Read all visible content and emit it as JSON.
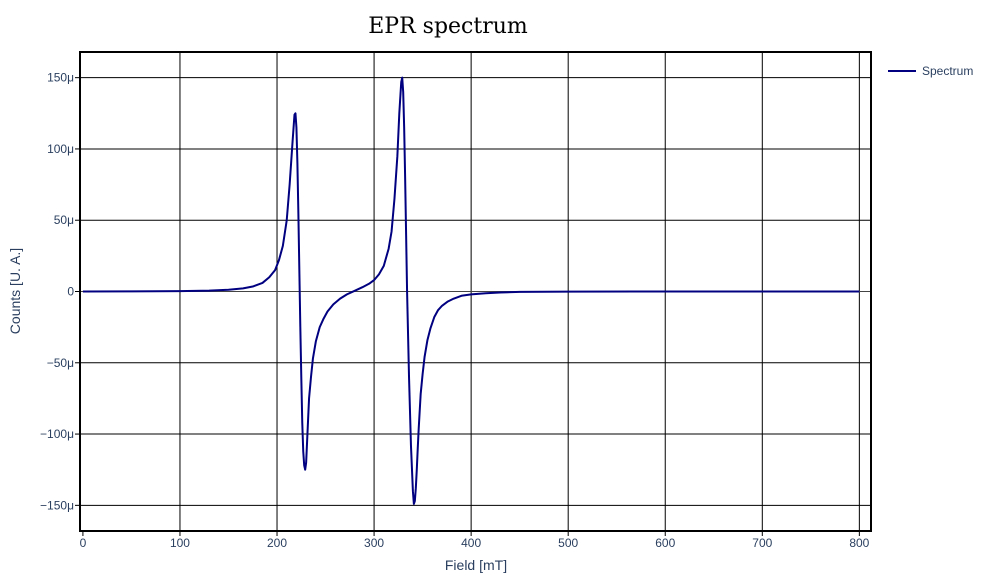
{
  "chart_data": {
    "type": "line",
    "title": "EPR spectrum",
    "xlabel": "Field [mT]",
    "ylabel": "Counts [U. A.]",
    "xlim": [
      -3,
      812
    ],
    "ylim": [
      -0.000168,
      0.000168
    ],
    "x_ticks": [
      0,
      100,
      200,
      300,
      400,
      500,
      600,
      700,
      800
    ],
    "x_tick_labels": [
      "0",
      "100",
      "200",
      "300",
      "400",
      "500",
      "600",
      "700",
      "800"
    ],
    "y_ticks": [
      0.00015,
      0.0001,
      5e-05,
      0,
      -5e-05,
      -0.0001,
      -0.00015
    ],
    "y_tick_labels": [
      "150μ",
      "100μ",
      "50μ",
      "0",
      "−50μ",
      "−100μ",
      "−150μ"
    ],
    "grid": true,
    "legend_position": "top-right",
    "series": [
      {
        "name": "Spectrum",
        "color": "#000080",
        "x": [
          0,
          50,
          100,
          130,
          150,
          165,
          175,
          185,
          192,
          198,
          202,
          206,
          210,
          213,
          216,
          218,
          219,
          220,
          221,
          222,
          223,
          224,
          225,
          226,
          227,
          228,
          229,
          230,
          231,
          232,
          233,
          235,
          237,
          240,
          244,
          248,
          252,
          258,
          265,
          272,
          280,
          288,
          295,
          300,
          305,
          310,
          315,
          318,
          321,
          324,
          326,
          328,
          329,
          330,
          331,
          332,
          333,
          334,
          336,
          338,
          340,
          341,
          342,
          343,
          344,
          345,
          346,
          347,
          348,
          350,
          352,
          355,
          358,
          362,
          366,
          370,
          376,
          382,
          390,
          400,
          415,
          430,
          450,
          500,
          600,
          700,
          800
        ],
        "y": [
          0,
          1e-07,
          3e-07,
          6e-07,
          1.2e-06,
          2.2e-06,
          3.5e-06,
          6e-06,
          1e-05,
          1.5e-05,
          2.2e-05,
          3.2e-05,
          5e-05,
          7.5e-05,
          0.000105,
          0.000124,
          0.000125,
          0.000115,
          9e-05,
          5.5e-05,
          1.5e-05,
          -2.5e-05,
          -6e-05,
          -9.2e-05,
          -0.000112,
          -0.000122,
          -0.000125,
          -0.00012,
          -0.000105,
          -9e-05,
          -7.5e-05,
          -6e-05,
          -4.7e-05,
          -3.5e-05,
          -2.5e-05,
          -1.9e-05,
          -1.4e-05,
          -9e-06,
          -5e-06,
          -2e-06,
          5e-07,
          3e-06,
          5.5e-06,
          8e-06,
          1.2e-05,
          1.8e-05,
          3e-05,
          4.2e-05,
          6.5e-05,
          9.5e-05,
          0.000125,
          0.000147,
          0.00015,
          0.00014,
          0.000115,
          8e-05,
          4e-05,
          0,
          -6e-05,
          -0.000108,
          -0.00014,
          -0.000149,
          -0.000147,
          -0.000138,
          -0.000125,
          -0.00011,
          -9.6e-05,
          -8.4e-05,
          -7.2e-05,
          -5.8e-05,
          -4.6e-05,
          -3.4e-05,
          -2.6e-05,
          -1.8e-05,
          -1.3e-05,
          -1e-05,
          -7e-06,
          -5e-06,
          -3e-06,
          -2e-06,
          -1.2e-06,
          -7e-07,
          -3e-07,
          -1e-07,
          0,
          0,
          0
        ]
      }
    ]
  }
}
